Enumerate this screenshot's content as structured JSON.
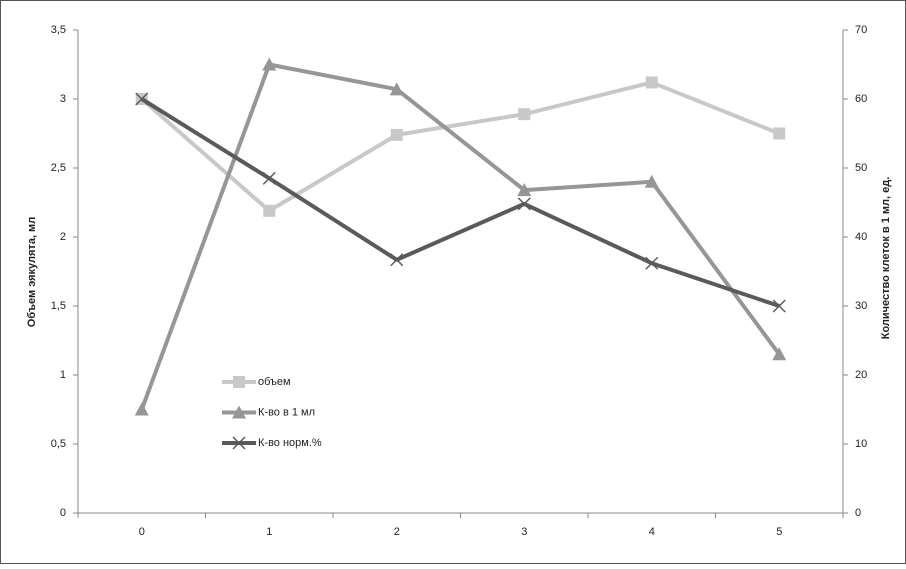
{
  "chart_data": {
    "type": "line",
    "categories": [
      "0",
      "1",
      "2",
      "3",
      "4",
      "5"
    ],
    "series": [
      {
        "name": "объем",
        "color": "#c8c8c8",
        "values": [
          3.0,
          2.19,
          2.74,
          2.89,
          3.12,
          2.75
        ]
      },
      {
        "name": "К-во в 1 мл",
        "color": "#969696",
        "axis": "y2",
        "values": [
          15,
          65,
          61.4,
          46.8,
          48,
          23
        ]
      },
      {
        "name": "К-во норм.%",
        "color": "#5a5a5a",
        "axis": "y2",
        "values": [
          60,
          48.5,
          36.7,
          44.8,
          36.2,
          30
        ]
      }
    ],
    "ylabel": "Объем эякулята, мл",
    "y2label": "Количество клеток в 1 мл, ед.",
    "ylim": [
      0,
      3.5
    ],
    "yticks": [
      0,
      {
        "value": 0.5,
        "label": "0,5"
      },
      1,
      {
        "value": 1.5,
        "label": "1,5"
      },
      2,
      {
        "value": 2.5,
        "label": "2,5"
      },
      3,
      {
        "value": 3.5,
        "label": "3,5"
      }
    ],
    "y2lim": [
      0,
      70
    ],
    "y2ticks": [
      0,
      10,
      20,
      30,
      40,
      50,
      60,
      70
    ],
    "grid": false
  }
}
